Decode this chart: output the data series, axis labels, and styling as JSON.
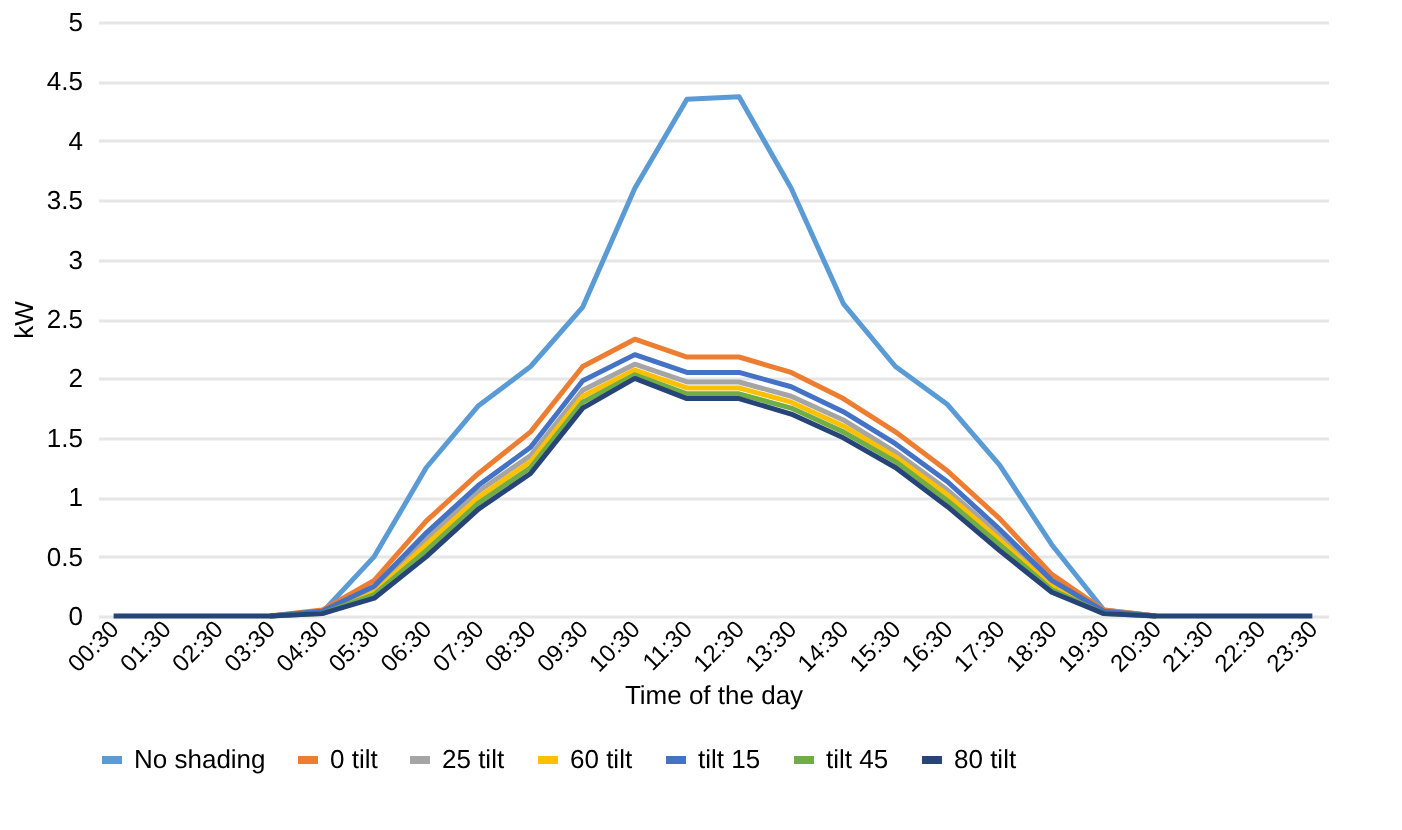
{
  "chart_data": {
    "type": "line",
    "xlabel": "Time of the day",
    "ylabel": "kW",
    "categories": [
      "00:30",
      "01:30",
      "02:30",
      "03:30",
      "04:30",
      "05:30",
      "06:30",
      "07:30",
      "08:30",
      "09:30",
      "10:30",
      "11:30",
      "12:30",
      "13:30",
      "14:30",
      "15:30",
      "16:30",
      "17:30",
      "18:30",
      "19:30",
      "20:30",
      "21:30",
      "22:30",
      "23:30"
    ],
    "ylim": [
      0,
      5
    ],
    "yticks": [
      0,
      0.5,
      1,
      1.5,
      2,
      2.5,
      3,
      3.5,
      4,
      4.5,
      5
    ],
    "grid": "y",
    "legend": "bottom",
    "marker": "none",
    "line_style": "solid",
    "series": [
      {
        "name": "No shading",
        "color": "#5b9bd5",
        "values": [
          null,
          null,
          null,
          0,
          0.03,
          0.5,
          1.25,
          1.77,
          2.1,
          2.6,
          3.6,
          4.35,
          4.37,
          3.6,
          2.63,
          2.1,
          1.78,
          1.27,
          0.6,
          0.05,
          0,
          null,
          null,
          null
        ]
      },
      {
        "name": "0 tilt",
        "color": "#ed7d31",
        "values": [
          null,
          null,
          null,
          0,
          0.05,
          0.3,
          0.8,
          1.2,
          1.55,
          2.1,
          2.33,
          2.18,
          2.18,
          2.05,
          1.83,
          1.55,
          1.22,
          0.82,
          0.35,
          0.05,
          0,
          null,
          null,
          null
        ]
      },
      {
        "name": "25 tilt",
        "color": "#a5a5a5",
        "values": [
          null,
          null,
          null,
          0,
          0.03,
          0.22,
          0.65,
          1.05,
          1.35,
          1.9,
          2.12,
          1.97,
          1.97,
          1.85,
          1.65,
          1.38,
          1.06,
          0.68,
          0.27,
          0.03,
          0,
          null,
          null,
          null
        ]
      },
      {
        "name": "60 tilt",
        "color": "#ffc000",
        "values": [
          null,
          null,
          null,
          0,
          0.03,
          0.2,
          0.6,
          1.0,
          1.3,
          1.85,
          2.07,
          1.92,
          1.92,
          1.8,
          1.6,
          1.34,
          1.02,
          0.64,
          0.25,
          0.03,
          0,
          null,
          null,
          null
        ]
      },
      {
        "name": "tilt 15",
        "color": "#4472c4",
        "values": [
          null,
          null,
          null,
          0,
          0.04,
          0.25,
          0.7,
          1.1,
          1.42,
          1.98,
          2.2,
          2.05,
          2.05,
          1.93,
          1.72,
          1.45,
          1.13,
          0.73,
          0.3,
          0.04,
          0,
          null,
          null,
          null
        ]
      },
      {
        "name": "tilt 45",
        "color": "#70ad47",
        "values": [
          null,
          null,
          null,
          0,
          0.02,
          0.18,
          0.55,
          0.95,
          1.25,
          1.8,
          2.03,
          1.87,
          1.87,
          1.75,
          1.55,
          1.3,
          0.97,
          0.6,
          0.22,
          0.02,
          0,
          null,
          null,
          null
        ]
      },
      {
        "name": "80 tilt",
        "color": "#264478",
        "values": [
          0,
          0,
          0,
          0,
          0.02,
          0.15,
          0.5,
          0.9,
          1.2,
          1.75,
          2.0,
          1.83,
          1.83,
          1.7,
          1.5,
          1.25,
          0.92,
          0.55,
          0.2,
          0.02,
          0,
          0,
          0,
          0
        ]
      }
    ]
  }
}
